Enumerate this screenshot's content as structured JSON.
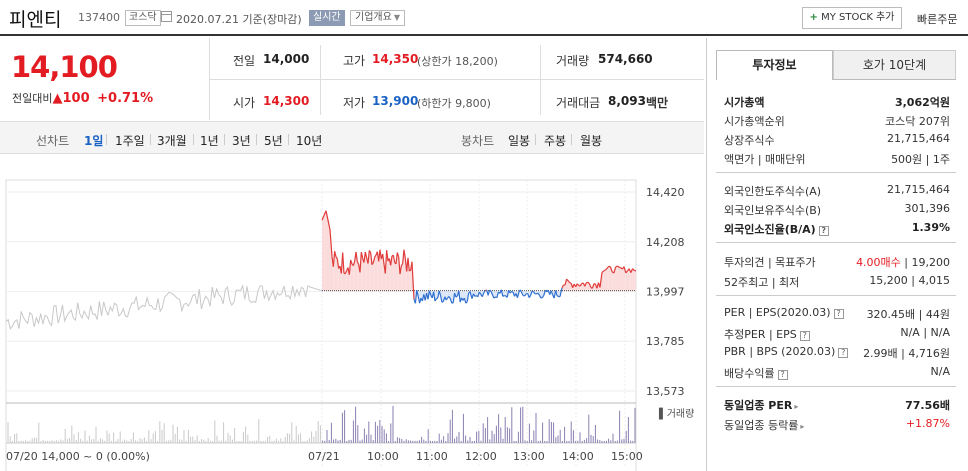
{
  "header": {
    "stock_name": "피엔티",
    "stock_code": "137400",
    "market_badge": "코스닥",
    "date_text": "2020.07.21 기준(장마감)",
    "realtime_badge": "실시간",
    "corp_overview_button": "기업개요",
    "mystock_plus": "+",
    "mystock_button": "MY STOCK 추가",
    "quick_order_button": "빠른주문"
  },
  "price": {
    "current": "14,100",
    "change_label": "전일대비",
    "change_arrow": "▲",
    "change_value": "100",
    "change_rate": "+0.71%"
  },
  "stats": {
    "prev_label": "전일",
    "prev_value": "14,000",
    "high_label": "고가",
    "high_value": "14,350",
    "upper_limit": "(상한가 18,200)",
    "volume_label": "거래량",
    "volume_value": "574,660",
    "open_label": "시가",
    "open_value": "14,300",
    "low_label": "저가",
    "low_value": "13,900",
    "lower_limit": "(하한가 9,800)",
    "amount_label": "거래대금",
    "amount_value": "8,093",
    "amount_unit": "백만"
  },
  "tabs": {
    "line_chart_label": "선차트",
    "line_periods": [
      "1일",
      "1주일",
      "3개월",
      "1년",
      "3년",
      "5년",
      "10년"
    ],
    "candle_chart_label": "봉차트",
    "candle_periods": [
      "일봉",
      "주봉",
      "월봉"
    ]
  },
  "chart_data": {
    "type": "line",
    "y_ticks": [
      "14,420",
      "14,208",
      "13,997",
      "13,785",
      "13,573"
    ],
    "ylim": [
      13573,
      14420
    ],
    "baseline": 14000,
    "prev_day_label": "07/20 14,000 ~ 0 (0.00%)",
    "x_ticks": [
      "07/21",
      "10:00",
      "11:00",
      "12:00",
      "13:00",
      "14:00",
      "15:00"
    ],
    "volume_label": "거래량",
    "colors": {
      "up": "#e03a3a",
      "down": "#2f6fd0",
      "prev": "#c8c8c8",
      "fill_up": "#fbdcdc",
      "fill_down": "#dbe6f7",
      "volume": "#8a7fb0"
    }
  },
  "right_panel": {
    "tab_active": "투자정보",
    "tab_other": "호가 10단계",
    "rows1": [
      {
        "label": "시가총액",
        "value": "3,062억원",
        "bold": true
      },
      {
        "label": "시가총액순위",
        "value": "코스닥 207위"
      },
      {
        "label": "상장주식수",
        "value": "21,715,464"
      },
      {
        "label": "액면가 | 매매단위",
        "value": "500원 | 1주"
      }
    ],
    "rows2": [
      {
        "label": "외국인한도주식수(A)",
        "value": "21,715,464"
      },
      {
        "label": "외국인보유주식수(B)",
        "value": "301,396"
      },
      {
        "label": "외국인소진율(B/A)",
        "value": "1.39%",
        "bold": true
      }
    ],
    "opinion_label": "투자의견 | 목표주가",
    "opinion_value": "4.00매수",
    "target_price": "19,200",
    "week52_label": "52주최고 | 최저",
    "week52_value": "15,200 | 4,015",
    "per_label": "PER | EPS(2020.03)",
    "per_value": "320.45배 | 44원",
    "est_per_label": "추정PER | EPS",
    "est_per_value": "N/A | N/A",
    "pbr_label": "PBR | BPS (2020.03)",
    "pbr_value": "2.99배 | 4,716원",
    "div_label": "배당수익률",
    "div_value": "N/A",
    "sector_per_label": "동일업종 PER",
    "sector_per_value": "77.56배",
    "sector_rate_label": "동일업종 등락률",
    "sector_rate_value": "+1.87%"
  }
}
